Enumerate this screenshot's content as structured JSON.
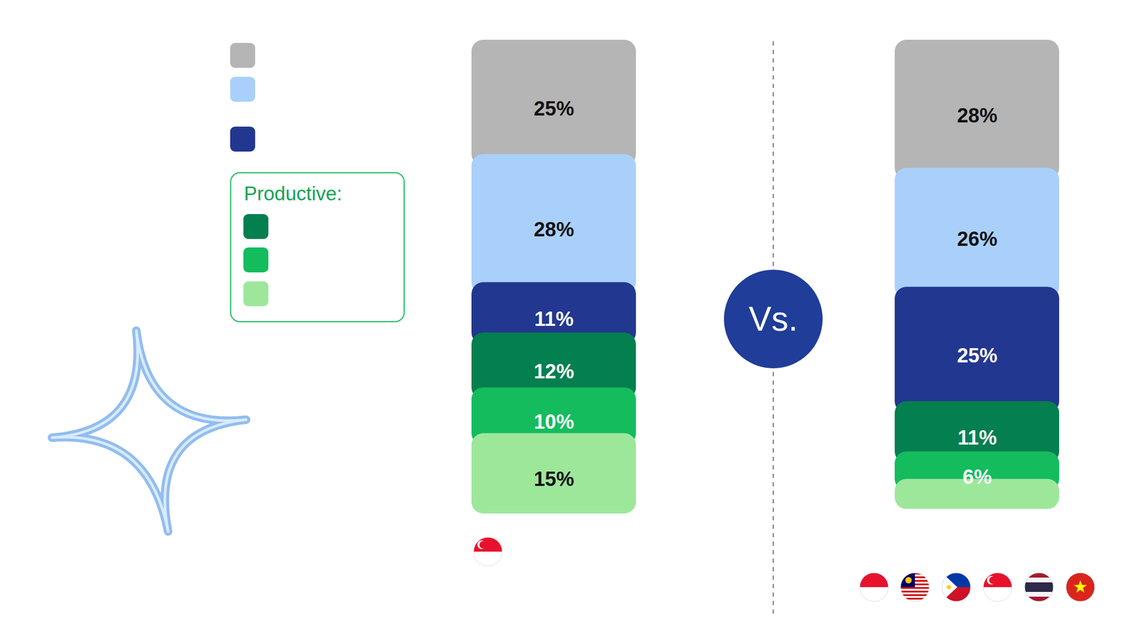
{
  "chart_data": {
    "type": "bar",
    "stacked": true,
    "data_labels": true,
    "tick_labels": false,
    "legend": "top-left",
    "categories": [
      null,
      null
    ],
    "ylim": [
      0,
      101
    ],
    "yticks": [],
    "series": [
      {
        "name": null,
        "color": "#b5b5b5",
        "values": [
          25,
          28
        ],
        "value_labels": [
          "25%",
          "28%"
        ]
      },
      {
        "name": null,
        "color": "#a9d0fb",
        "values": [
          28,
          26
        ],
        "value_labels": [
          "28%",
          "26%"
        ]
      },
      {
        "name": null,
        "color": "#22378f",
        "values": [
          11,
          25
        ],
        "value_labels": [
          "11%",
          "25%"
        ]
      },
      {
        "name": null,
        "color": "#047f4f",
        "values": [
          12,
          11
        ],
        "value_labels": [
          "12%",
          "11%"
        ]
      },
      {
        "name": null,
        "color": "#14bc5e",
        "values": [
          10,
          6
        ],
        "value_labels": [
          "10%",
          "6%"
        ]
      },
      {
        "name": null,
        "color": "#9de79b",
        "values": [
          15,
          4
        ],
        "value_labels": [
          "15%",
          null
        ]
      }
    ],
    "annotations": [
      "Productive:",
      "Vs."
    ]
  }
}
